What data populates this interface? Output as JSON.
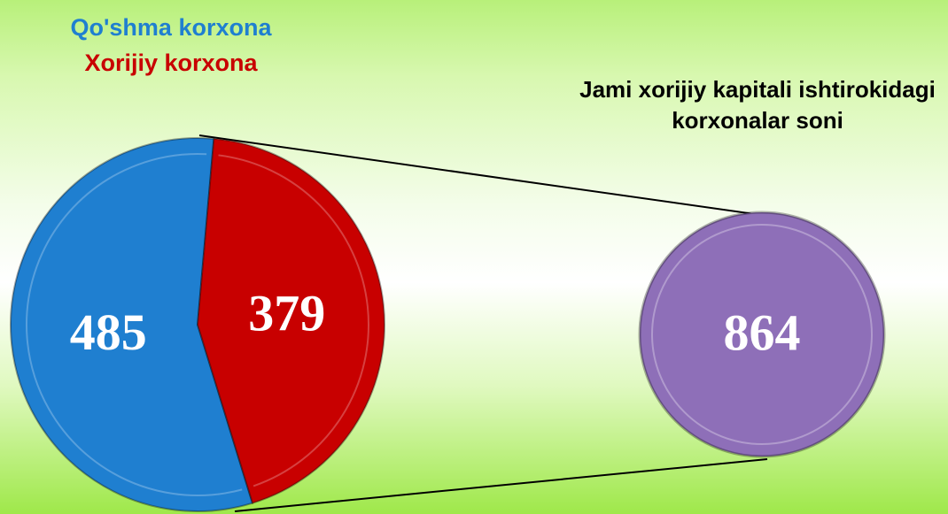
{
  "chart_data": {
    "type": "pie",
    "categories": [
      "Qo'shma korxona",
      "Xorijiy korxona"
    ],
    "values": [
      485,
      379
    ],
    "colors": [
      "#1f7fd0",
      "#c80000"
    ],
    "total": {
      "title": "Jami xorijiy kapitali ishtirokidagi korxonalar soni",
      "value": 864,
      "color": "#8e6fb8"
    }
  }
}
